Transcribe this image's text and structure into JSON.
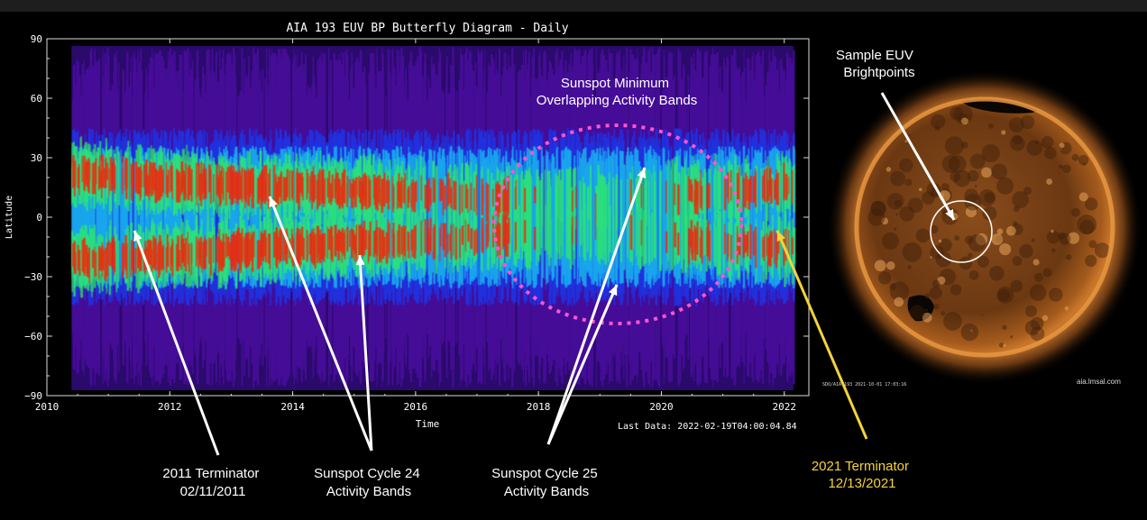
{
  "chart_data": {
    "type": "heatmap",
    "title": "AIA 193 EUV BP Butterfly Diagram - Daily",
    "xlabel": "Time",
    "ylabel": "Latitude",
    "xlim": [
      2010,
      2022.4
    ],
    "ylim": [
      -90,
      90
    ],
    "x_ticks": [
      2010,
      2012,
      2014,
      2016,
      2018,
      2020,
      2022
    ],
    "y_ticks": [
      -90,
      -60,
      -30,
      0,
      30,
      60,
      90
    ],
    "data_range": [
      2010.4,
      2022.15
    ],
    "last_data": "Last Data: 2022-02-19T04:00:04.84",
    "colors": {
      "low": "#4a0d9e",
      "mid_low": "#1c35e6",
      "mid": "#17c3f2",
      "mid_high": "#30f25a",
      "high": "#ff1a00",
      "circle": "#ff55cc",
      "terminator_2021": "#f5d33a"
    },
    "activity_bands": [
      {
        "name": "north",
        "points": [
          [
            2010.4,
            22
          ],
          [
            2011.5,
            19
          ],
          [
            2013,
            16
          ],
          [
            2014.5,
            14
          ],
          [
            2016,
            12
          ],
          [
            2017.5,
            9
          ],
          [
            2018.8,
            7
          ],
          [
            2019.8,
            10
          ],
          [
            2020.8,
            13
          ],
          [
            2022.15,
            16
          ]
        ]
      },
      {
        "name": "south",
        "points": [
          [
            2010.4,
            -22
          ],
          [
            2011.5,
            -20
          ],
          [
            2013,
            -17
          ],
          [
            2014.5,
            -14
          ],
          [
            2016,
            -12
          ],
          [
            2017.5,
            -9
          ],
          [
            2018.8,
            -7
          ],
          [
            2019.8,
            -10
          ],
          [
            2020.8,
            -13
          ],
          [
            2022.15,
            -16
          ]
        ]
      }
    ],
    "annotations": [
      {
        "text": [
          "Sunspot Minimum",
          "Overlapping Activity Bands"
        ]
      },
      {
        "text": [
          "2011 Terminator",
          "02/11/2011"
        ]
      },
      {
        "text": [
          "Sunspot Cycle 24",
          "Activity Bands"
        ]
      },
      {
        "text": [
          "Sunspot Cycle 25",
          "Activity Bands"
        ]
      },
      {
        "text": [
          "2021 Terminator",
          "12/13/2021"
        ]
      }
    ]
  },
  "sun_panel": {
    "label": [
      "Sample EUV",
      "Brightpoints"
    ],
    "caption": "SDO/AIA 193 2021-10-01 17:03:16",
    "credit": "aia.lmsal.com"
  }
}
